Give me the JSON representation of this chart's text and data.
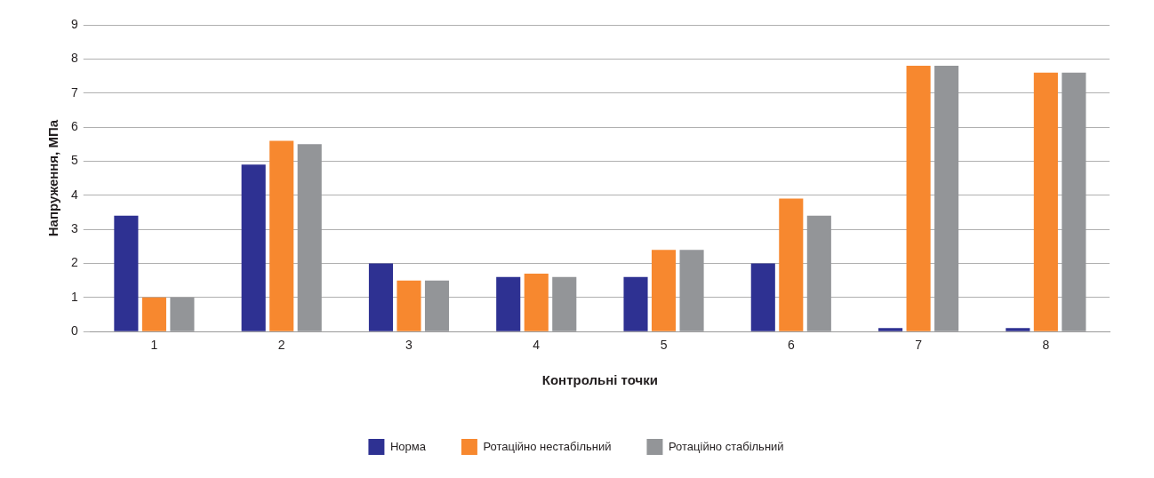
{
  "chart_data": {
    "type": "bar",
    "xlabel": "Контрольні точки",
    "ylabel": "Напруження, МПа",
    "categories": [
      "1",
      "2",
      "3",
      "4",
      "5",
      "6",
      "7",
      "8"
    ],
    "series": [
      {
        "name": "Норма",
        "color": "#2e3192",
        "values": [
          3.4,
          4.9,
          2.0,
          1.6,
          1.6,
          2.0,
          0.1,
          0.1
        ]
      },
      {
        "name": "Ротаційно нестабільний",
        "color": "#f7882f",
        "values": [
          1.0,
          5.6,
          1.5,
          1.7,
          2.4,
          3.9,
          7.8,
          7.6
        ]
      },
      {
        "name": "Ротаційно стабільний",
        "color": "#939598",
        "values": [
          1.0,
          5.5,
          1.5,
          1.6,
          2.4,
          3.4,
          7.8,
          7.6
        ]
      }
    ],
    "ylim": [
      0,
      9
    ],
    "yticks": [
      0,
      1,
      2,
      3,
      4,
      5,
      6,
      7,
      8,
      9
    ],
    "grid": "y",
    "legend": "bottom"
  }
}
